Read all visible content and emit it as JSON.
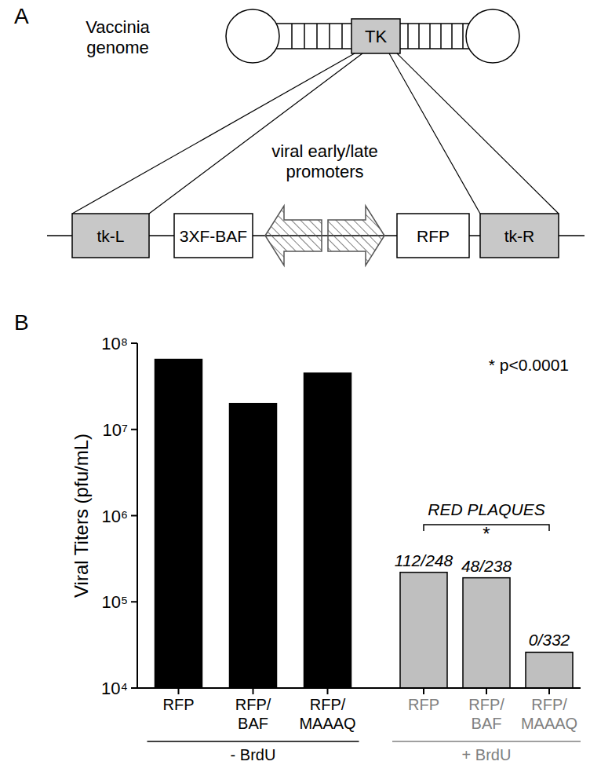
{
  "panel_labels": [
    "A",
    "B"
  ],
  "diagram": {
    "genome_label": "Vaccinia genome",
    "gene": "TK",
    "promoter_label": "viral early/late promoters",
    "elements": [
      "tk-L",
      "3XF-BAF",
      "RFP",
      "tk-R"
    ]
  },
  "chart_data": {
    "type": "bar",
    "log": "y",
    "ylabel": "Viral Titers (pfu/mL)",
    "categories": [
      "RFP",
      "RFP/BAF",
      "RFP/MAAAQ",
      "RFP",
      "RFP/BAF",
      "RFP/MAAAQ"
    ],
    "values": [
      65000000,
      20000000,
      45000000,
      220000,
      190000,
      26000
    ],
    "colors": [
      "#000000",
      "#000000",
      "#000000",
      "#bfbfbf",
      "#bfbfbf",
      "#bfbfbf"
    ],
    "groups": [
      {
        "label": "- BrdU",
        "indices": [
          0,
          1,
          2
        ],
        "color": "#000000"
      },
      {
        "label": "+ BrdU",
        "indices": [
          3,
          4,
          5
        ],
        "color": "#808080"
      }
    ],
    "bar_annotations": [
      {
        "index": 3,
        "text": "112/248"
      },
      {
        "index": 4,
        "text": "48/238"
      },
      {
        "index": 5,
        "text": "0/332"
      }
    ],
    "bracket": {
      "label": "RED PLAQUES",
      "from": 3,
      "to": 5,
      "mark": "*"
    },
    "note": "* p<0.0001",
    "ylim": [
      10000,
      100000000
    ],
    "yticks": [
      {
        "value": 10000,
        "label": "10⁴"
      },
      {
        "value": 100000,
        "label": "10⁵"
      },
      {
        "value": 1000000,
        "label": "10⁶"
      },
      {
        "value": 10000000,
        "label": "10⁷"
      },
      {
        "value": 100000000,
        "label": "10⁸"
      }
    ],
    "grid": false
  }
}
